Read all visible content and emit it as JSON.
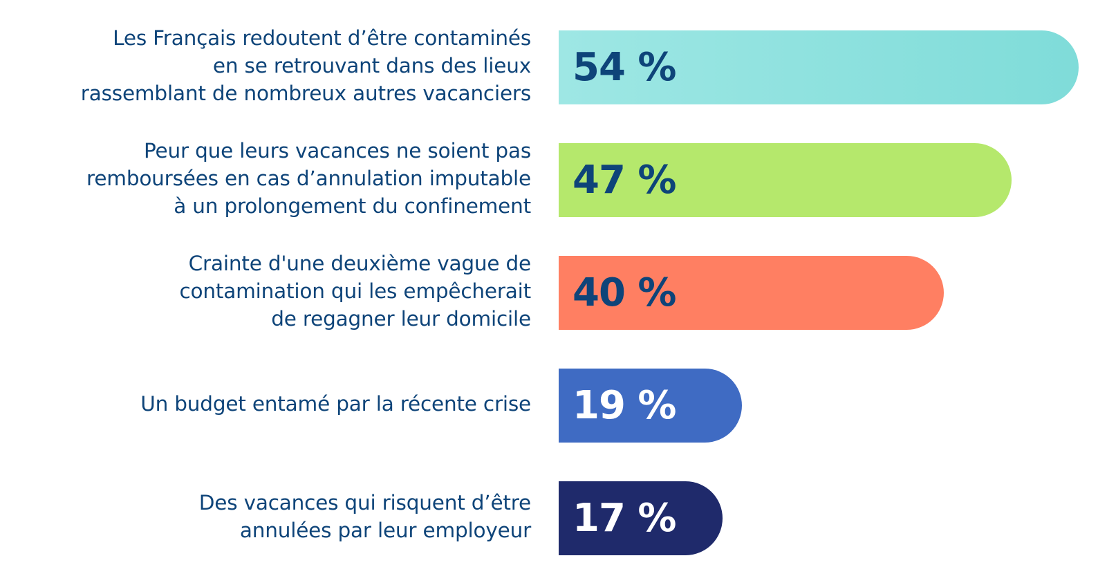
{
  "chart_data": {
    "type": "bar",
    "orientation": "horizontal",
    "categories": [
      [
        "Les Français redoutent d’être contaminés",
        "en se retrouvant dans des lieux",
        "rassemblant de nombreux autres vacanciers"
      ],
      [
        "Peur que leurs vacances ne soient pas",
        "remboursées en cas d’annulation imputable",
        "à un prolongement du confinement"
      ],
      [
        "Crainte d'une deuxième vague de",
        "contamination qui les empêcherait",
        "de regagner leur domicile"
      ],
      [
        "Un budget entamé par la récente crise"
      ],
      [
        "Des vacances qui risquent d’être",
        "annulées par leur employeur"
      ]
    ],
    "values": [
      54,
      47,
      40,
      19,
      17
    ],
    "value_labels": [
      "54 %",
      "47 %",
      "40 %",
      "19 %",
      "17 %"
    ],
    "unit": "%",
    "xlim": [
      0,
      54
    ],
    "grid": false,
    "legend": "none",
    "colors": [
      "#7fdcd9",
      "#b5e86c",
      "#ff7f62",
      "#3f6bc3",
      "#1f2a6b"
    ],
    "gradient_start_colors": [
      "#9ee7e4",
      "#b5e86c",
      "#ff7f62",
      "#3f6bc3",
      "#1f2a6b"
    ],
    "label_text_colors": [
      "#0e4479",
      "#0e4479",
      "#0e4479",
      "#ffffff",
      "#ffffff"
    ]
  }
}
